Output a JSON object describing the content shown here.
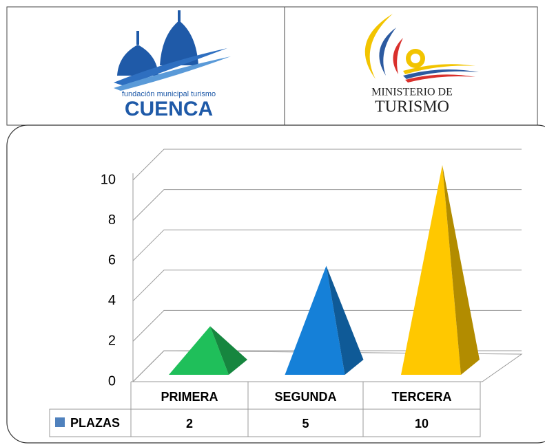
{
  "header": {
    "left_logo": {
      "small": "fundación municipal turismo",
      "big": "CUENCA"
    },
    "right_logo": {
      "line1": "MINISTERIO DE",
      "line2": "TURISMO"
    }
  },
  "chart_data": {
    "type": "pyramid",
    "categories": [
      "PRIMERA",
      "SEGUNDA",
      "TERCERA"
    ],
    "series": [
      {
        "name": "PLAZAS",
        "color": "#4f81bd",
        "values": [
          2,
          5,
          10
        ],
        "point_colors": [
          "#1fbf5a",
          "#1580d8",
          "#ffc800"
        ]
      }
    ],
    "ylim": [
      0,
      10
    ],
    "yticks": [
      0,
      2,
      4,
      6,
      8,
      10
    ],
    "grid": true,
    "data_table": true
  }
}
